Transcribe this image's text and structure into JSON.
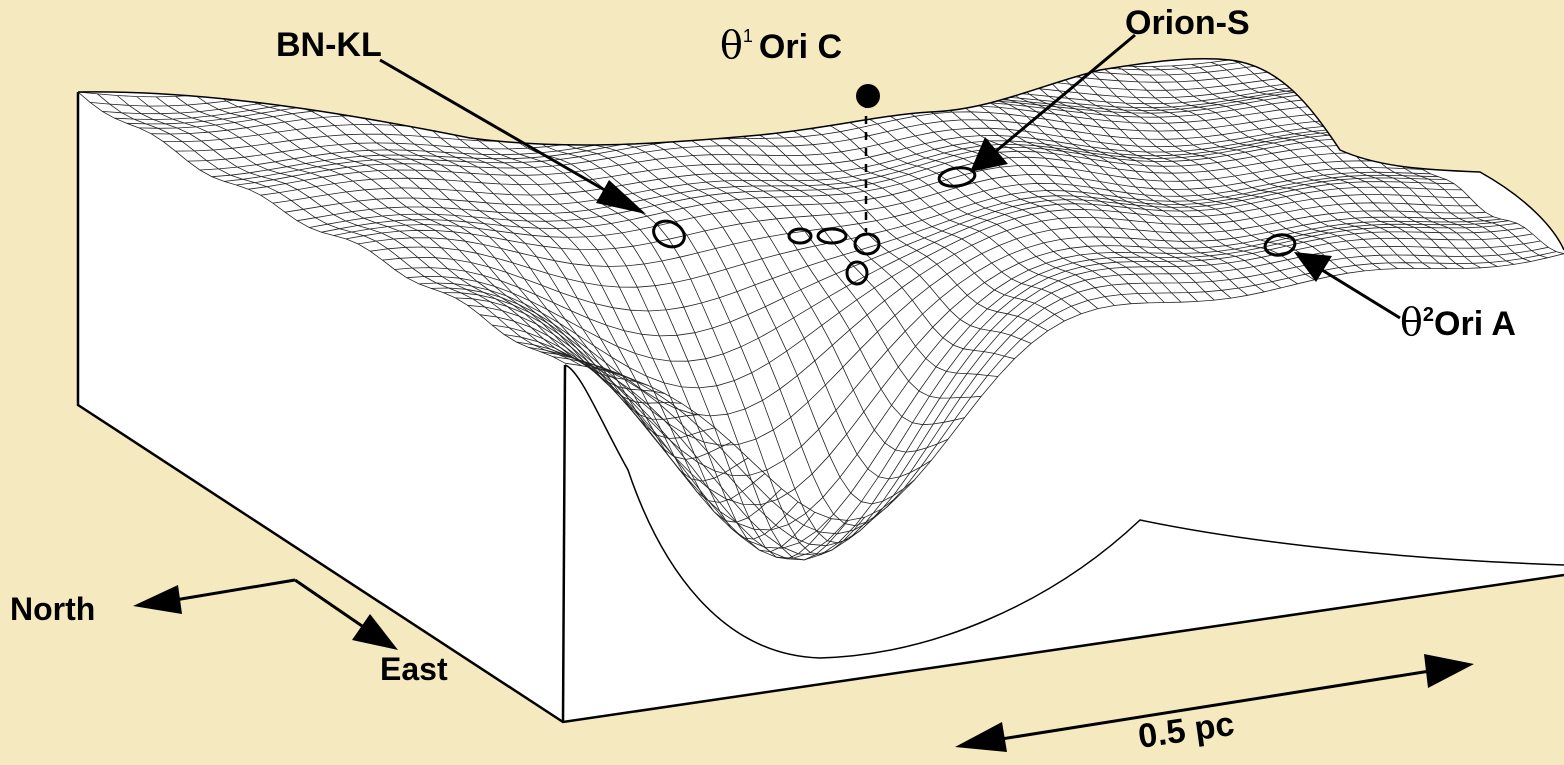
{
  "colors": {
    "background": "#f5e9c0",
    "surface": "#ffffff",
    "ink": "#000000"
  },
  "labels": {
    "bn_kl": "BN-KL",
    "theta1_symbol": "θ",
    "theta1_superscript": "1",
    "theta1_name": "Ori C",
    "orion_s": "Orion-S",
    "theta2_symbol": "θ",
    "theta2_superscript": "2",
    "theta2_name": "Ori A",
    "north": "North",
    "east": "East",
    "scale": "0.5 pc"
  },
  "icons": {
    "star": "filled-circle-icon",
    "source": "ellipse-marker-icon",
    "pointer": "arrow-icon"
  }
}
